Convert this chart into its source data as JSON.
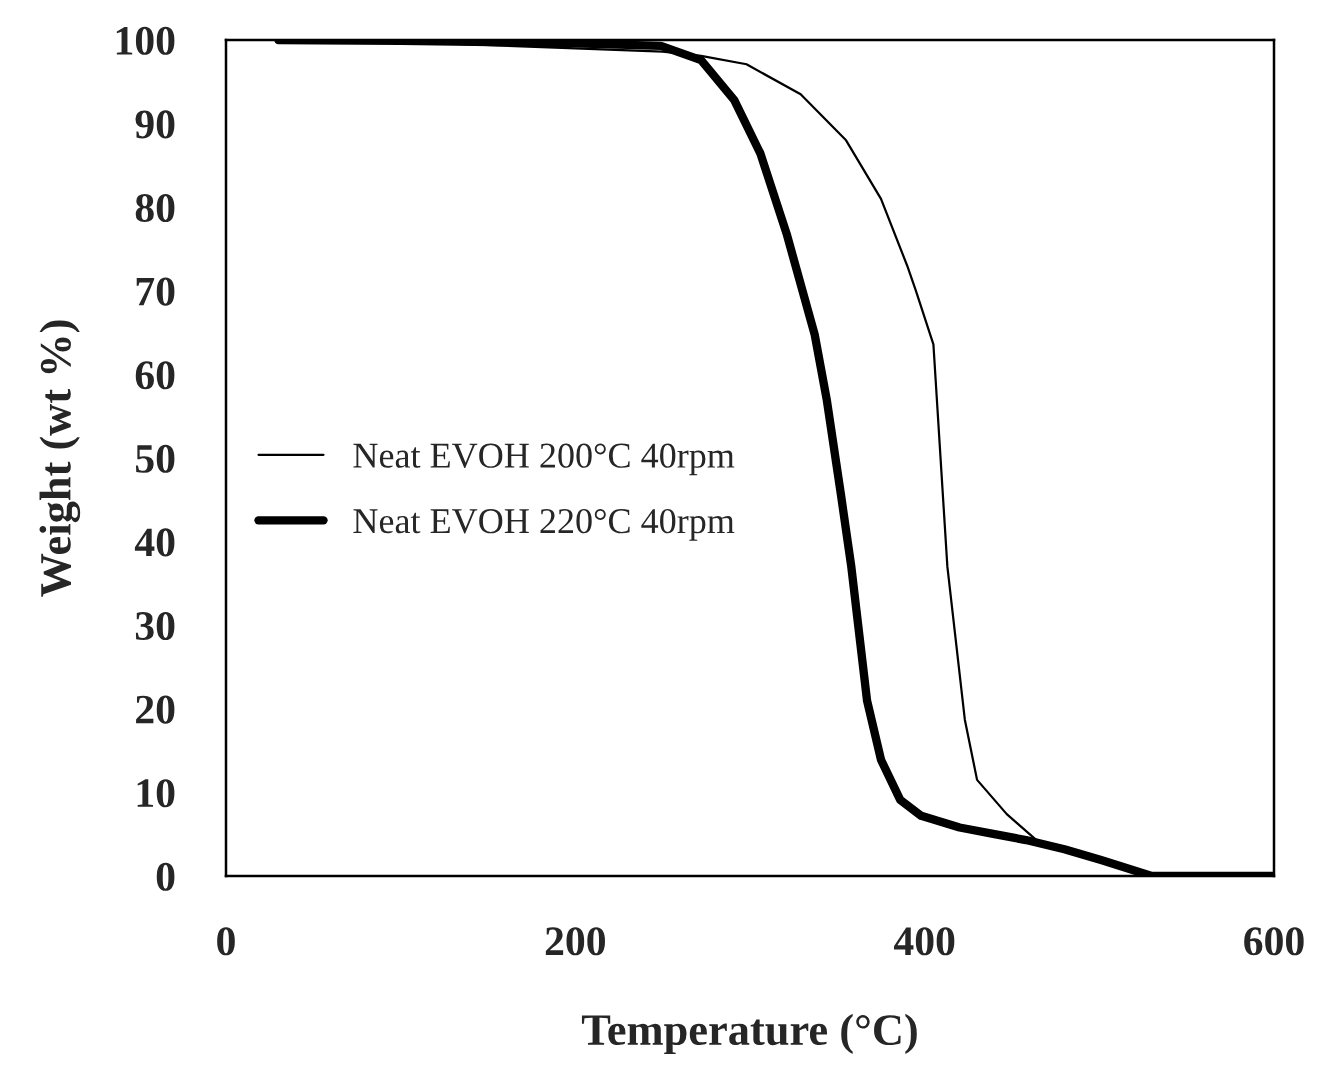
{
  "chart_data": {
    "type": "line",
    "xlabel": "Temperature (°C)",
    "ylabel": "Weight (wt %)",
    "xlim": [
      0,
      600
    ],
    "ylim": [
      0,
      100
    ],
    "xticks": [
      0,
      200,
      400,
      600
    ],
    "yticks": [
      0,
      10,
      20,
      30,
      40,
      50,
      60,
      70,
      80,
      90,
      100
    ],
    "grid": false,
    "legend": "left",
    "line_style": "solid",
    "marker": "none",
    "series": [
      {
        "name": "Neat EVOH 200°C 40rpm",
        "color": "#000000",
        "x": [
          30,
          100,
          200,
          250,
          272,
          298,
          329,
          355,
          375,
          390,
          395,
          405,
          413,
          423,
          430,
          447,
          464,
          480,
          501,
          530,
          560,
          600
        ],
        "values": [
          100,
          99.8,
          99,
          98.6,
          98.1,
          97.1,
          93.5,
          88,
          81,
          73,
          70,
          63.6,
          37,
          18.7,
          11.5,
          7.4,
          4.3,
          3.3,
          1.9,
          0,
          0,
          0
        ]
      },
      {
        "name": "Neat EVOH 220°C 40rpm",
        "color": "#000000",
        "x": [
          30,
          100,
          200,
          249,
          272,
          291,
          306,
          321,
          337,
          344,
          352,
          358,
          367,
          375,
          386,
          398,
          420,
          440,
          458,
          480,
          501,
          530,
          560,
          600
        ],
        "values": [
          100,
          99.9,
          99.6,
          99.3,
          97.6,
          92.8,
          86.4,
          76.8,
          64.8,
          56.9,
          45.7,
          37,
          21,
          13.9,
          9.1,
          7.2,
          5.8,
          5,
          4.3,
          3.2,
          1.9,
          0,
          0,
          0
        ]
      }
    ]
  }
}
